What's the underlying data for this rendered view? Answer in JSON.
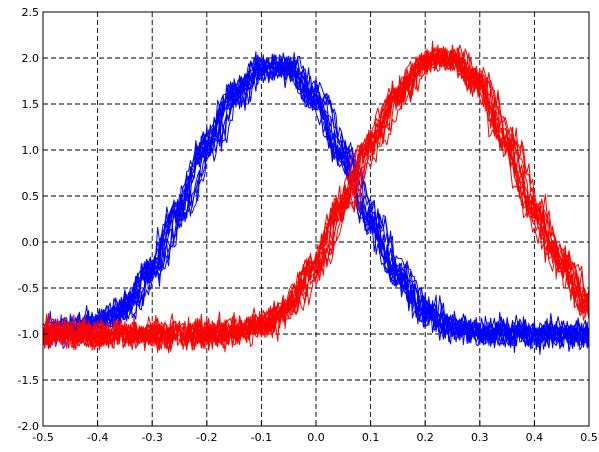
{
  "chart_data": {
    "type": "line",
    "title": "",
    "xlabel": "",
    "ylabel": "",
    "xlim": [
      -0.5,
      0.5
    ],
    "ylim": [
      -2.0,
      2.5
    ],
    "x_ticks": [
      -0.5,
      -0.4,
      -0.3,
      -0.2,
      -0.1,
      0.0,
      0.1,
      0.2,
      0.3,
      0.4,
      0.5
    ],
    "y_ticks": [
      -2.0,
      -1.5,
      -1.0,
      -0.5,
      0.0,
      0.5,
      1.0,
      1.5,
      2.0,
      2.5
    ],
    "x_tick_labels": [
      "-0.5",
      "-0.4",
      "-0.3",
      "-0.2",
      "-0.1",
      "0.0",
      "0.1",
      "0.2",
      "0.3",
      "0.4",
      "0.5"
    ],
    "y_tick_labels": [
      "-2.0",
      "-1.5",
      "-1.0",
      "-0.5",
      "0.0",
      "0.5",
      "1.0",
      "1.5",
      "2.0",
      "2.5"
    ],
    "grid": true,
    "legend": "none",
    "series": [
      {
        "color": "#0000ff",
        "x": [
          -0.5,
          -0.45,
          -0.4,
          -0.35,
          -0.3,
          -0.25,
          -0.2,
          -0.15,
          -0.1,
          -0.05,
          0.0,
          0.05,
          0.1,
          0.15,
          0.2,
          0.25,
          0.3,
          0.35,
          0.4,
          0.45,
          0.5
        ],
        "values": [
          -1.0,
          -0.95,
          -0.88,
          -0.72,
          -0.3,
          0.35,
          1.05,
          1.6,
          1.9,
          1.9,
          1.55,
          0.95,
          0.25,
          -0.35,
          -0.75,
          -0.92,
          -0.98,
          -1.0,
          -1.0,
          -1.0,
          -1.0
        ]
      },
      {
        "color": "#ff0000",
        "x": [
          -0.5,
          -0.45,
          -0.4,
          -0.35,
          -0.3,
          -0.25,
          -0.2,
          -0.15,
          -0.1,
          -0.05,
          0.0,
          0.05,
          0.1,
          0.15,
          0.2,
          0.25,
          0.3,
          0.35,
          0.4,
          0.45,
          0.5
        ],
        "values": [
          -1.0,
          -1.0,
          -1.0,
          -1.0,
          -1.0,
          -1.0,
          -1.0,
          -0.98,
          -0.92,
          -0.7,
          -0.25,
          0.4,
          1.05,
          1.6,
          1.95,
          2.0,
          1.75,
          1.1,
          0.35,
          -0.2,
          -0.7
        ]
      }
    ]
  }
}
